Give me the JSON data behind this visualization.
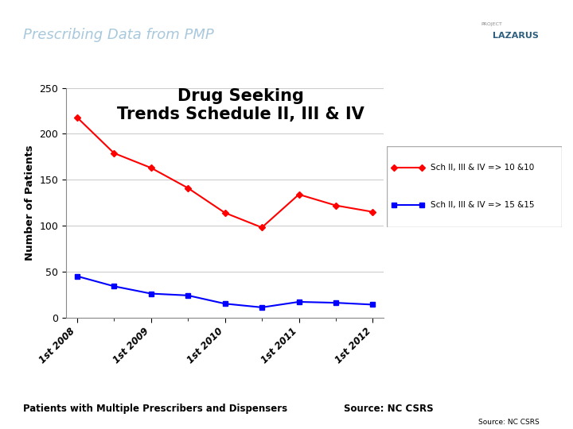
{
  "title": "Drug Seeking\nTrends Schedule II, III & IV",
  "header_text": "Prescribing Data from PMP",
  "ylabel": "Number of Patients",
  "x_labels": [
    "1st 2008",
    "1st 2009",
    "1st 2010",
    "1st 2011",
    "1st 2012"
  ],
  "x_major_ticks": [
    0,
    2,
    4,
    6,
    8
  ],
  "red_series": [
    218,
    179,
    163,
    141,
    114,
    98,
    134,
    122,
    115
  ],
  "blue_series": [
    45,
    34,
    26,
    24,
    15,
    11,
    17,
    16,
    14
  ],
  "red_x": [
    0,
    1,
    2,
    3,
    4,
    5,
    6,
    7,
    8
  ],
  "blue_x": [
    0,
    1,
    2,
    3,
    4,
    5,
    6,
    7,
    8
  ],
  "red_color": "#FF0000",
  "blue_color": "#0000FF",
  "legend_label_red": "Sch II, III & IV => 10 &10",
  "legend_label_blue": "Sch II, III & IV => 15 &15",
  "ylim": [
    0,
    250
  ],
  "yticks": [
    0,
    50,
    100,
    150,
    200,
    250
  ],
  "xlim": [
    -0.3,
    8.3
  ],
  "header_bg": "#2E5F7E",
  "header_text_color": "#A8C8DC",
  "bg_color": "#FFFFFF",
  "footer_text": "Patients with Multiple Prescribers and Dispensers",
  "source_text": "Source: NC CSRS",
  "source_text2": "Source: NC CSRS"
}
